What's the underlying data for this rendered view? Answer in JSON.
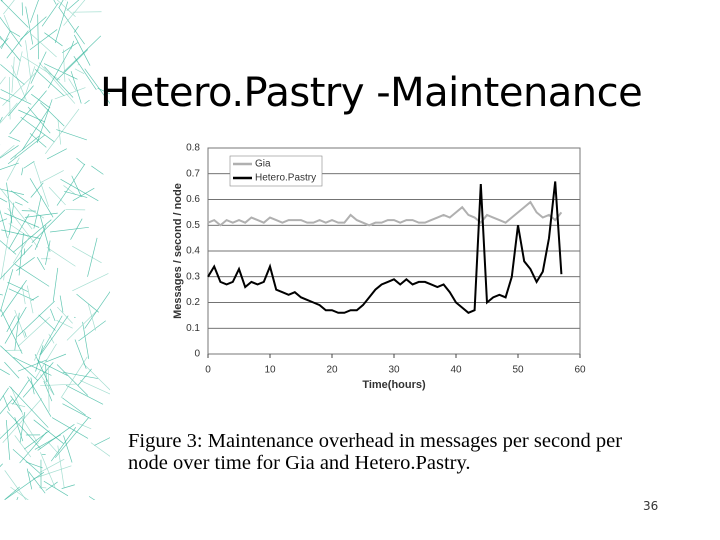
{
  "title": "Hetero.Pastry -Maintenance",
  "caption": "Figure 3: Maintenance overhead in messages per second per node over time for Gia and Hetero.Pastry.",
  "page_number": "36",
  "chart_data": {
    "type": "line",
    "xlabel": "Time(hours)",
    "ylabel": "Messages / second / node",
    "x": [
      0,
      1,
      2,
      3,
      4,
      5,
      6,
      7,
      8,
      9,
      10,
      11,
      12,
      13,
      14,
      15,
      16,
      17,
      18,
      19,
      20,
      21,
      22,
      23,
      24,
      25,
      26,
      27,
      28,
      29,
      30,
      31,
      32,
      33,
      34,
      35,
      36,
      37,
      38,
      39,
      40,
      41,
      42,
      43,
      44,
      45,
      46,
      47,
      48,
      49,
      50,
      51,
      52,
      53,
      54,
      55,
      56,
      57
    ],
    "series": [
      {
        "name": "Gia",
        "color": "#b0b0b0",
        "values": [
          0.51,
          0.52,
          0.5,
          0.52,
          0.51,
          0.52,
          0.51,
          0.53,
          0.52,
          0.51,
          0.53,
          0.52,
          0.51,
          0.52,
          0.52,
          0.52,
          0.51,
          0.51,
          0.52,
          0.51,
          0.52,
          0.51,
          0.51,
          0.54,
          0.52,
          0.51,
          0.5,
          0.51,
          0.51,
          0.52,
          0.52,
          0.51,
          0.52,
          0.52,
          0.51,
          0.51,
          0.52,
          0.53,
          0.54,
          0.53,
          0.55,
          0.57,
          0.54,
          0.53,
          0.51,
          0.54,
          0.53,
          0.52,
          0.51,
          0.53,
          0.55,
          0.57,
          0.59,
          0.55,
          0.53,
          0.54,
          0.52,
          0.55
        ]
      },
      {
        "name": "Hetero.Pastry",
        "color": "#000000",
        "values": [
          0.3,
          0.34,
          0.28,
          0.27,
          0.28,
          0.33,
          0.26,
          0.28,
          0.27,
          0.28,
          0.34,
          0.25,
          0.24,
          0.23,
          0.24,
          0.22,
          0.21,
          0.2,
          0.19,
          0.17,
          0.17,
          0.16,
          0.16,
          0.17,
          0.17,
          0.19,
          0.22,
          0.25,
          0.27,
          0.28,
          0.29,
          0.27,
          0.29,
          0.27,
          0.28,
          0.28,
          0.27,
          0.26,
          0.27,
          0.24,
          0.2,
          0.18,
          0.16,
          0.17,
          0.66,
          0.2,
          0.22,
          0.23,
          0.22,
          0.3,
          0.5,
          0.36,
          0.33,
          0.28,
          0.32,
          0.45,
          0.67,
          0.31
        ]
      }
    ],
    "xlim": [
      0,
      60
    ],
    "xticks": [
      0,
      10,
      20,
      30,
      40,
      50,
      60
    ],
    "ylim": [
      0,
      0.8
    ],
    "yticks": [
      0,
      0.1,
      0.2,
      0.3,
      0.4,
      0.5,
      0.6,
      0.7,
      0.8
    ],
    "grid": true,
    "legend": "top-left"
  }
}
